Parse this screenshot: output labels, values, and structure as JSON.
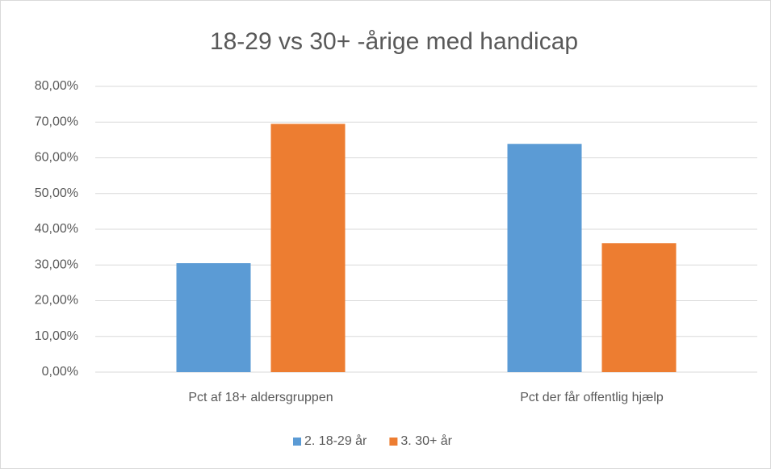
{
  "chart_data": {
    "type": "bar",
    "title": "18-29 vs 30+ -årige med handicap",
    "categories": [
      "Pct af 18+ aldersgruppen",
      "Pct der får offentlig hjælp"
    ],
    "series": [
      {
        "name": "2. 18-29 år",
        "color": "#5b9bd5",
        "values": [
          30.5,
          63.9
        ]
      },
      {
        "name": "3. 30+ år",
        "color": "#ed7d31",
        "values": [
          69.5,
          36.1
        ]
      }
    ],
    "ylim": [
      0,
      80
    ],
    "yticks": [
      {
        "value": 0,
        "label": "0,00%"
      },
      {
        "value": 10,
        "label": "10,00%"
      },
      {
        "value": 20,
        "label": "20,00%"
      },
      {
        "value": 30,
        "label": "30,00%"
      },
      {
        "value": 40,
        "label": "40,00%"
      },
      {
        "value": 50,
        "label": "50,00%"
      },
      {
        "value": 60,
        "label": "60,00%"
      },
      {
        "value": 70,
        "label": "70,00%"
      },
      {
        "value": 80,
        "label": "80,00%"
      }
    ],
    "grid": true,
    "legend": "bottom"
  }
}
